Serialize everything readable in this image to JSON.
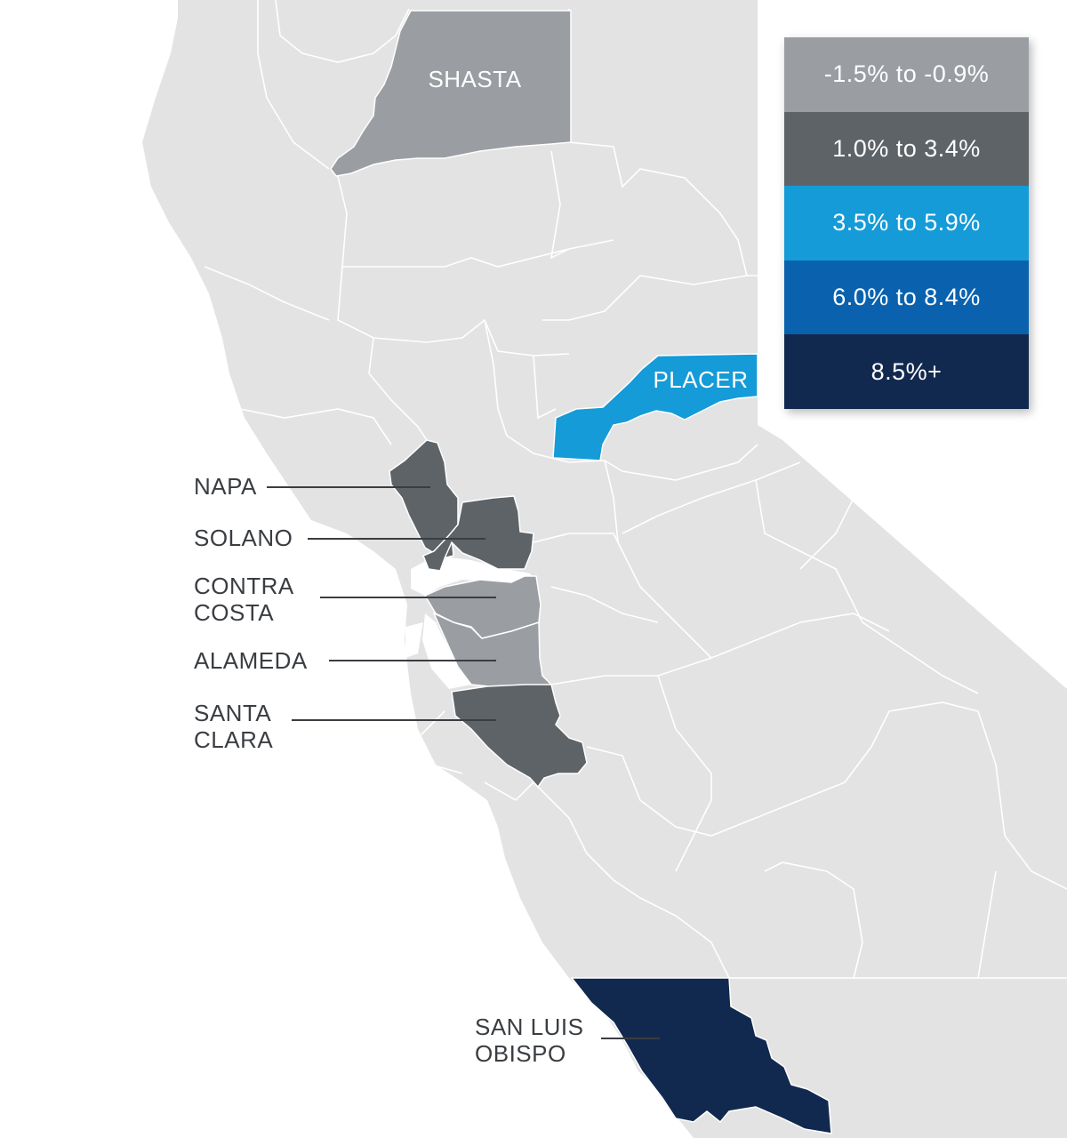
{
  "legend": {
    "items": [
      {
        "label": "-1.5% to -0.9%",
        "color": "#9a9ea3"
      },
      {
        "label": "1.0% to 3.4%",
        "color": "#5e6367"
      },
      {
        "label": "3.5% to 5.9%",
        "color": "#159bd7"
      },
      {
        "label": "6.0% to 8.4%",
        "color": "#0a62ae"
      },
      {
        "label": "8.5%+",
        "color": "#12294f"
      }
    ]
  },
  "map": {
    "base_color": "#e3e3e3",
    "border_color": "#ffffff",
    "water_color": "#ffffff"
  },
  "counties": {
    "shasta": {
      "name": "SHASTA",
      "range": "-1.5% to -0.9%",
      "color": "#9a9ea3"
    },
    "placer": {
      "name": "PLACER",
      "range": "3.5% to 5.9%",
      "color": "#159bd7"
    },
    "napa": {
      "name": "NAPA",
      "range": "1.0% to 3.4%",
      "color": "#5e6367"
    },
    "solano": {
      "name": "SOLANO",
      "range": "1.0% to 3.4%",
      "color": "#5e6367"
    },
    "contra_costa": {
      "name_line1": "CONTRA",
      "name_line2": "COSTA",
      "range": "-1.5% to -0.9%",
      "color": "#9a9ea3"
    },
    "alameda": {
      "name": "ALAMEDA",
      "range": "-1.5% to -0.9%",
      "color": "#9a9ea3"
    },
    "santa_clara": {
      "name_line1": "SANTA",
      "name_line2": "CLARA",
      "range": "1.0% to 3.4%",
      "color": "#5e6367"
    },
    "san_luis_obispo": {
      "name_line1": "SAN LUIS",
      "name_line2": "OBISPO",
      "range": "8.5%+",
      "color": "#12294f"
    }
  }
}
